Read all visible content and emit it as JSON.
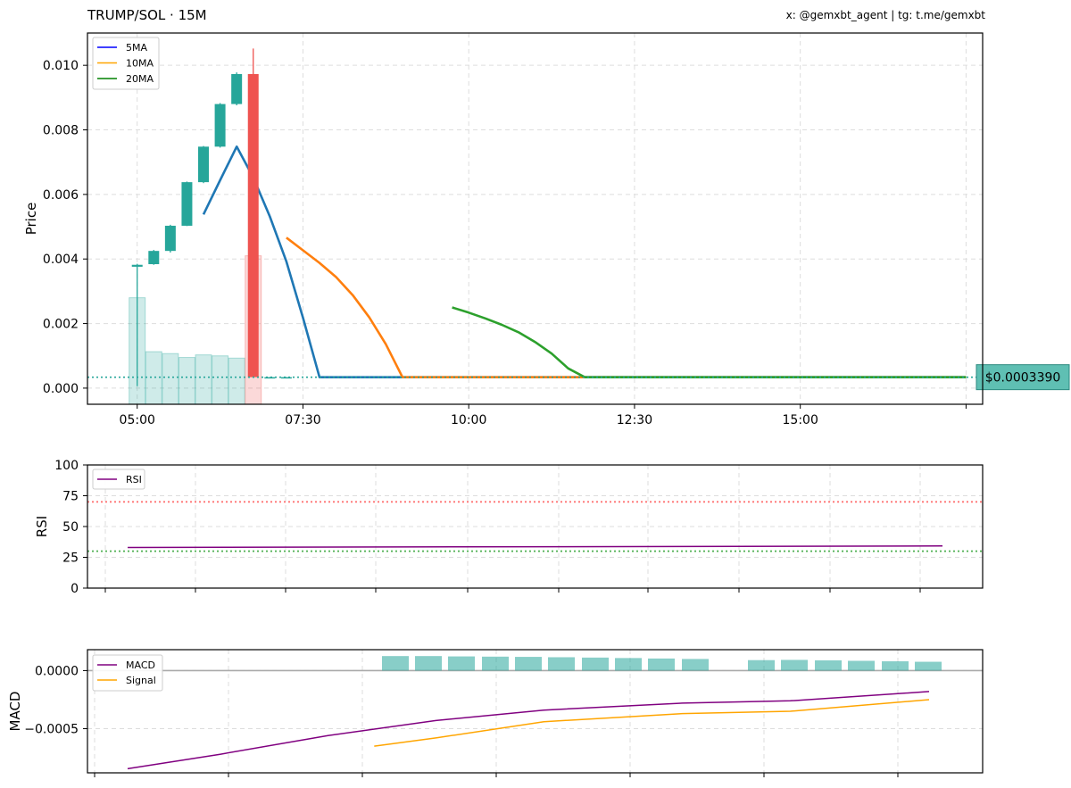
{
  "header": {
    "title": "TRUMP/SOL · 15M",
    "credit": "x: @gemxbt_agent | tg: t.me/gemxbt"
  },
  "colors": {
    "up": "#26a69a",
    "down": "#ef5350",
    "ma5": "#1f77b4",
    "ma10": "#ff7f0e",
    "ma20": "#2ca02c",
    "legend_ma5": "#0000ff",
    "legend_ma10": "#ffa500",
    "legend_ma20": "#008000",
    "rsi": "#800080",
    "macd": "#800080",
    "signal": "#ffa500",
    "overbought": "#ff6b6b",
    "oversold": "#4caf50",
    "price_tag_bg": "#5fbfb3"
  },
  "chart_data": [
    {
      "type": "candlestick",
      "ylabel": "Price",
      "ylim": [
        -0.0005,
        0.011
      ],
      "yticks": [
        0.0,
        0.002,
        0.004,
        0.006,
        0.008,
        0.01
      ],
      "ytick_labels": [
        "0.000",
        "0.002",
        "0.004",
        "0.006",
        "0.008",
        "0.010"
      ],
      "xlim": [
        "04:15",
        "17:45"
      ],
      "xticks": [
        "05:00",
        "07:30",
        "10:00",
        "12:30",
        "15:00"
      ],
      "legend": [
        "5MA",
        "10MA",
        "20MA"
      ],
      "legend_position": "top-left",
      "grid": true,
      "candles": [
        {
          "t": "05:00",
          "open": 0.00376,
          "high": 0.00385,
          "low": 6e-05,
          "close": 0.00382
        },
        {
          "t": "05:15",
          "open": 0.00384,
          "high": 0.00428,
          "low": 0.00382,
          "close": 0.00425
        },
        {
          "t": "05:30",
          "open": 0.00425,
          "high": 0.00506,
          "low": 0.0042,
          "close": 0.00503
        },
        {
          "t": "05:45",
          "open": 0.00503,
          "high": 0.0064,
          "low": 0.00502,
          "close": 0.00638
        },
        {
          "t": "06:00",
          "open": 0.00638,
          "high": 0.0075,
          "low": 0.00635,
          "close": 0.00748
        },
        {
          "t": "06:15",
          "open": 0.00748,
          "high": 0.00883,
          "low": 0.00745,
          "close": 0.0088
        },
        {
          "t": "06:30",
          "open": 0.0088,
          "high": 0.00978,
          "low": 0.00876,
          "close": 0.00973
        },
        {
          "t": "06:45",
          "open": 0.00973,
          "high": 0.01052,
          "low": 0.00034,
          "close": 0.00034
        },
        {
          "t": "07:00",
          "open": 0.000339,
          "high": 0.000345,
          "low": 0.000333,
          "close": 0.000339
        },
        {
          "t": "07:15",
          "open": 0.000339,
          "high": 0.000345,
          "low": 0.000333,
          "close": 0.000339
        }
      ],
      "volume": {
        "label": "Volume",
        "t": [
          "05:00",
          "05:15",
          "05:30",
          "05:45",
          "06:00",
          "06:15",
          "06:30",
          "06:45"
        ],
        "values": [
          0.0028,
          0.00113,
          0.00107,
          0.00095,
          0.00103,
          0.001,
          0.00093,
          0.0041
        ],
        "unit": "price-axis scale"
      },
      "series": [
        {
          "name": "5MA",
          "t": [
            "06:00",
            "06:15",
            "06:30",
            "06:45",
            "07:00",
            "07:15",
            "07:30",
            "07:45",
            "18:00"
          ],
          "values": [
            0.00538,
            0.00644,
            0.00748,
            0.00653,
            0.00532,
            0.00392,
            0.00218,
            0.000339,
            0.000339
          ]
        },
        {
          "name": "10MA",
          "t": [
            "07:15",
            "07:30",
            "07:45",
            "08:00",
            "08:15",
            "08:30",
            "08:45",
            "09:00",
            "09:15",
            "18:00"
          ],
          "values": [
            0.00466,
            0.00427,
            0.00388,
            0.00344,
            0.00288,
            0.00219,
            0.00136,
            0.00034,
            0.000339,
            0.000339
          ]
        },
        {
          "name": "20MA",
          "t": [
            "09:45",
            "10:00",
            "10:15",
            "10:30",
            "10:45",
            "11:00",
            "11:15",
            "11:30",
            "11:45",
            "18:00"
          ],
          "values": [
            0.0025,
            0.00234,
            0.00216,
            0.00196,
            0.00173,
            0.00143,
            0.00107,
            0.00061,
            0.000339,
            0.000339
          ]
        }
      ],
      "last_price": {
        "value": 0.000339,
        "label": "$0.0003390"
      }
    },
    {
      "type": "line",
      "ylabel": "RSI",
      "ylim": [
        0,
        100
      ],
      "yticks": [
        0,
        25,
        50,
        75,
        100
      ],
      "ytick_labels": [
        "0",
        "25",
        "50",
        "75",
        "100"
      ],
      "legend": [
        "RSI"
      ],
      "legend_position": "top-left",
      "grid": true,
      "levels": [
        {
          "value": 70,
          "name": "overbought"
        },
        {
          "value": 30,
          "name": "oversold"
        }
      ],
      "series": [
        {
          "name": "RSI",
          "t": [
            "04:55",
            "17:40"
          ],
          "values": [
            33.0,
            34.2
          ]
        }
      ]
    },
    {
      "type": "bar+line",
      "ylabel": "MACD",
      "ylim": [
        -0.00088,
        0.00018
      ],
      "yticks": [
        -0.0005,
        0.0
      ],
      "ytick_labels": [
        "−0.0005",
        "0.0000"
      ],
      "legend": [
        "MACD",
        "Signal"
      ],
      "legend_position": "top-left",
      "grid": true,
      "histogram": {
        "name": "Histogram",
        "values": [
          0.000125,
          0.000125,
          0.000122,
          0.00012,
          0.000118,
          0.000115,
          0.000112,
          0.000108,
          0.000104,
          0.0001,
          9e-05,
          9.2e-05,
          8.8e-05,
          8.4e-05,
          8e-05,
          7.6e-05,
          7.2e-05
        ]
      },
      "series": [
        {
          "name": "MACD",
          "x": [
            0,
            6,
            13,
            20,
            27,
            36,
            43,
            52
          ],
          "values": [
            -0.000845,
            -0.00072,
            -0.00056,
            -0.00043,
            -0.00034,
            -0.00028,
            -0.00026,
            -0.00018
          ]
        },
        {
          "name": "Signal",
          "x": [
            16,
            20,
            27,
            36,
            43,
            52
          ],
          "values": [
            -0.00065,
            -0.00058,
            -0.00044,
            -0.00037,
            -0.00035,
            -0.00025
          ]
        }
      ]
    }
  ]
}
